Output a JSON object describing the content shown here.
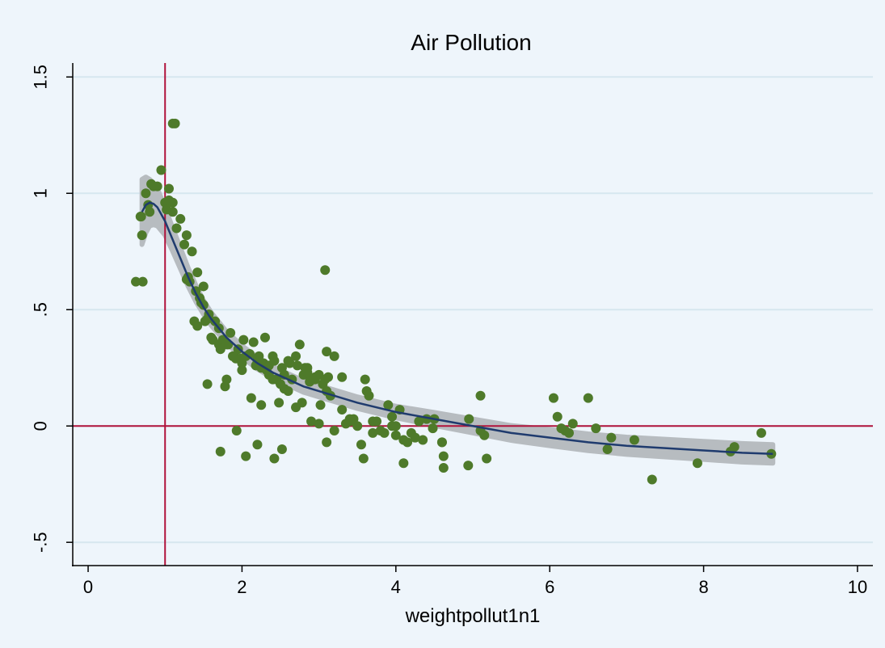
{
  "chart_data": {
    "type": "scatter",
    "title": "Air Pollution",
    "xlabel": "weightpollut1n1",
    "ylabel": "",
    "xlim": [
      -0.2,
      10.2
    ],
    "ylim": [
      -0.6,
      1.56
    ],
    "x_ticks": [
      0,
      2,
      4,
      6,
      8,
      10
    ],
    "x_tick_labels": [
      "0",
      "2",
      "4",
      "6",
      "8",
      "10"
    ],
    "y_ticks": [
      -0.5,
      0,
      0.5,
      1,
      1.5
    ],
    "y_tick_labels": [
      "-.5",
      "0",
      ".5",
      "1",
      "1.5"
    ],
    "grid": "horizontal",
    "reference_lines": {
      "x": 1,
      "y": 0,
      "color": "#b0123b"
    },
    "colors": {
      "background": "#eef5fb",
      "plot_background": "#eef5fb",
      "grid": "#d6e7ef",
      "points": "#4e7a2a",
      "fit_line": "#1f3b6e",
      "ci_band": "#b7bcc0"
    },
    "series": [
      {
        "type": "scatter",
        "x": [
          0.69,
          0.7,
          0.71,
          0.75,
          0.8,
          0.82,
          0.85,
          0.95,
          1.0,
          1.02,
          1.05,
          1.1,
          1.1,
          1.15,
          1.2,
          1.25,
          1.28,
          1.3,
          1.32,
          1.35,
          1.38,
          1.4,
          1.42,
          1.45,
          1.47,
          1.5,
          1.52,
          1.55,
          1.57,
          1.6,
          1.62,
          1.65,
          1.7,
          1.72,
          1.75,
          1.8,
          1.82,
          1.85,
          1.9,
          1.92,
          1.95,
          2.0,
          2.02,
          2.05,
          2.1,
          2.15,
          2.18,
          2.2,
          2.22,
          2.25,
          2.28,
          2.3,
          2.32,
          2.35,
          2.4,
          2.42,
          2.45,
          2.5,
          2.52,
          2.55,
          2.6,
          2.62,
          2.65,
          2.7,
          2.72,
          2.75,
          2.8,
          2.82,
          2.85,
          2.9,
          2.95,
          3.0,
          3.02,
          3.05,
          3.08,
          3.1,
          3.15,
          3.2,
          3.3,
          3.35,
          3.4,
          3.5,
          3.6,
          3.62,
          3.65,
          3.7,
          3.8,
          3.9,
          3.95,
          4.0,
          4.05,
          4.1,
          4.2,
          4.25,
          4.3,
          4.4,
          4.5,
          4.6,
          4.95,
          5.1,
          5.15,
          6.05,
          6.1,
          6.2,
          6.3,
          6.5,
          6.6,
          6.75,
          6.8,
          7.1,
          8.35,
          8.4,
          8.75,
          8.88,
          7.33,
          7.92,
          3.08,
          1.13,
          0.62,
          1.93,
          2.05,
          2.2,
          2.42,
          2.52,
          1.72,
          3.58,
          4.1,
          4.62,
          4.62,
          4.94,
          5.18,
          2.9,
          3.1,
          3.2,
          3.55,
          3.85,
          1.55,
          1.78,
          2.0,
          2.25,
          2.4,
          2.55,
          2.7,
          2.85,
          2.95,
          3.1,
          3.4,
          3.75,
          4.0,
          4.15,
          4.35,
          4.6,
          5.1,
          6.15,
          0.9,
          0.68,
          0.78,
          1.05,
          1.1,
          1.28,
          1.42,
          1.5,
          1.62,
          1.7,
          1.8,
          1.88,
          1.98,
          2.12,
          2.2,
          2.35,
          2.48,
          2.6,
          2.78,
          2.88,
          3.0,
          3.12,
          3.3,
          3.45,
          3.7,
          3.95,
          4.25,
          4.48,
          6.25
        ],
        "y": [
          0.9,
          0.82,
          0.62,
          1.0,
          0.92,
          1.04,
          1.03,
          1.1,
          0.96,
          0.93,
          1.02,
          0.96,
          1.3,
          0.85,
          0.89,
          0.78,
          0.82,
          0.64,
          0.62,
          0.75,
          0.45,
          0.58,
          0.66,
          0.55,
          0.53,
          0.6,
          0.45,
          0.46,
          0.48,
          0.38,
          0.37,
          0.45,
          0.35,
          0.33,
          0.37,
          0.2,
          0.35,
          0.4,
          0.3,
          0.29,
          0.33,
          0.27,
          0.37,
          0.3,
          0.31,
          0.36,
          0.26,
          0.28,
          0.3,
          0.25,
          0.27,
          0.38,
          0.24,
          0.26,
          0.3,
          0.28,
          0.2,
          0.18,
          0.25,
          0.22,
          0.28,
          0.27,
          0.2,
          0.3,
          0.26,
          0.35,
          0.22,
          0.25,
          0.25,
          0.2,
          0.2,
          0.22,
          0.09,
          0.18,
          0.2,
          0.32,
          0.13,
          0.3,
          0.21,
          0.01,
          0.02,
          0.0,
          0.2,
          0.15,
          0.13,
          0.02,
          -0.02,
          0.09,
          0.04,
          -0.04,
          0.07,
          -0.06,
          -0.03,
          -0.05,
          0.02,
          0.03,
          0.03,
          -0.07,
          0.03,
          0.13,
          -0.04,
          0.12,
          0.04,
          -0.02,
          0.01,
          0.12,
          -0.01,
          -0.1,
          -0.05,
          -0.06,
          -0.11,
          -0.09,
          -0.03,
          -0.12,
          -0.23,
          -0.16,
          0.67,
          1.3,
          0.62,
          -0.02,
          -0.13,
          -0.08,
          -0.14,
          -0.1,
          -0.11,
          -0.14,
          -0.16,
          -0.13,
          -0.18,
          -0.17,
          -0.14,
          0.02,
          -0.07,
          -0.02,
          -0.08,
          -0.03,
          0.18,
          0.17,
          0.24,
          0.09,
          0.2,
          0.16,
          0.08,
          0.23,
          0.21,
          0.15,
          0.03,
          0.02,
          0.0,
          -0.07,
          -0.06,
          -0.07,
          -0.02,
          -0.01,
          1.03,
          0.9,
          0.95,
          0.97,
          0.92,
          0.63,
          0.43,
          0.52,
          0.37,
          0.42,
          0.35,
          0.3,
          0.29,
          0.12,
          0.29,
          0.22,
          0.1,
          0.15,
          0.1,
          0.19,
          0.01,
          0.21,
          0.07,
          0.03,
          -0.03,
          0.0,
          -0.05,
          -0.01,
          -0.03
        ]
      },
      {
        "type": "line",
        "name": "",
        "x": [
          0.7,
          0.75,
          0.8,
          0.85,
          0.9,
          1.0,
          1.1,
          1.2,
          1.3,
          1.4,
          1.5,
          1.6,
          1.8,
          2.0,
          2.2,
          2.4,
          2.6,
          2.8,
          3.0,
          3.2,
          3.5,
          4.0,
          4.5,
          5.0,
          5.5,
          6.0,
          6.5,
          7.0,
          7.5,
          8.0,
          8.5,
          8.9
        ],
        "y": [
          0.92,
          0.95,
          0.96,
          0.955,
          0.94,
          0.88,
          0.8,
          0.72,
          0.64,
          0.57,
          0.51,
          0.46,
          0.38,
          0.32,
          0.27,
          0.23,
          0.2,
          0.17,
          0.15,
          0.13,
          0.1,
          0.06,
          0.03,
          0.0,
          -0.03,
          -0.05,
          -0.07,
          -0.085,
          -0.095,
          -0.105,
          -0.115,
          -0.12
        ],
        "band_halfwidth": [
          0.14,
          0.12,
          0.1,
          0.09,
          0.08,
          0.06,
          0.05,
          0.045,
          0.04,
          0.035,
          0.03,
          0.028,
          0.025,
          0.025,
          0.025,
          0.025,
          0.025,
          0.025,
          0.025,
          0.025,
          0.025,
          0.025,
          0.028,
          0.03,
          0.032,
          0.035,
          0.036,
          0.037,
          0.038,
          0.039,
          0.04,
          0.04
        ]
      }
    ]
  }
}
